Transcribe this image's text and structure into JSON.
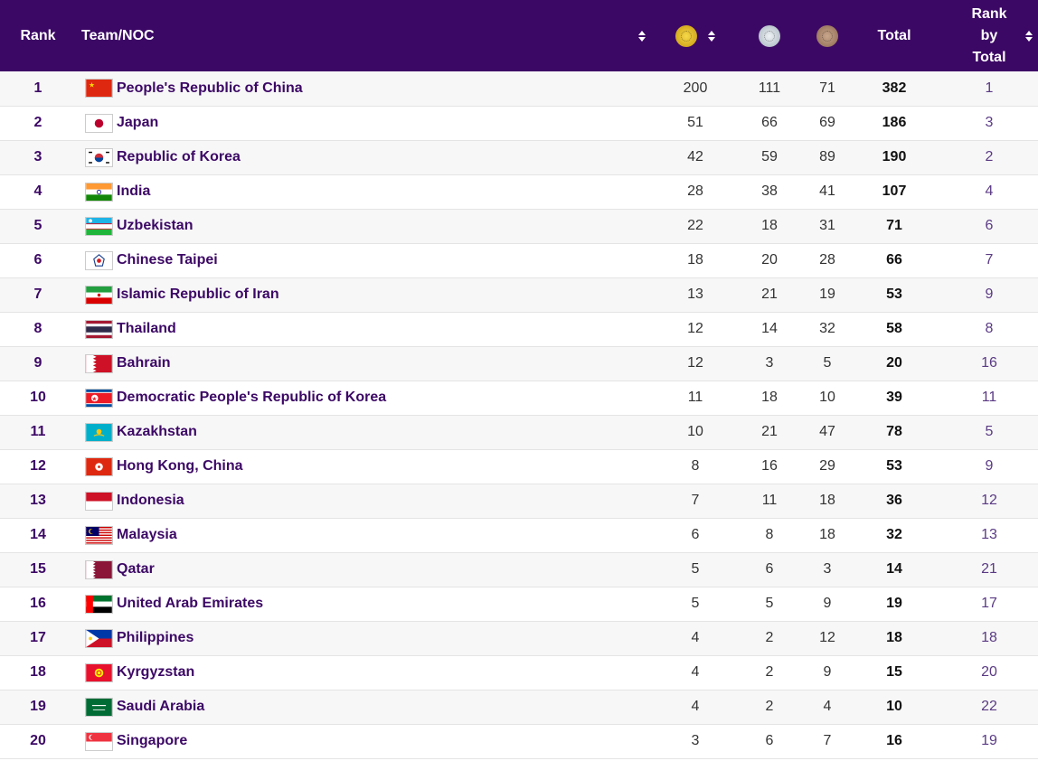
{
  "header": {
    "rank": "Rank",
    "team": "Team/NOC",
    "total": "Total",
    "rank_by_total": [
      "Rank",
      "by",
      "Total"
    ],
    "gold_icon": "gold-medal-icon",
    "silver_icon": "silver-medal-icon",
    "bronze_icon": "bronze-medal-icon"
  },
  "colors": {
    "header_bg": "#3c0865",
    "gold": "#d4aa1f",
    "silver": "#c4cdd4",
    "bronze": "#a8836a"
  },
  "rows": [
    {
      "rank": "1",
      "team": "People's Republic of China",
      "gold": "200",
      "silver": "111",
      "bronze": "71",
      "total": "382",
      "rank_by_total": "1",
      "flag": "china-flag-icon"
    },
    {
      "rank": "2",
      "team": "Japan",
      "gold": "51",
      "silver": "66",
      "bronze": "69",
      "total": "186",
      "rank_by_total": "3",
      "flag": "japan-flag-icon"
    },
    {
      "rank": "3",
      "team": "Republic of Korea",
      "gold": "42",
      "silver": "59",
      "bronze": "89",
      "total": "190",
      "rank_by_total": "2",
      "flag": "korea-flag-icon"
    },
    {
      "rank": "4",
      "team": "India",
      "gold": "28",
      "silver": "38",
      "bronze": "41",
      "total": "107",
      "rank_by_total": "4",
      "flag": "india-flag-icon"
    },
    {
      "rank": "5",
      "team": "Uzbekistan",
      "gold": "22",
      "silver": "18",
      "bronze": "31",
      "total": "71",
      "rank_by_total": "6",
      "flag": "uzbekistan-flag-icon"
    },
    {
      "rank": "6",
      "team": "Chinese Taipei",
      "gold": "18",
      "silver": "20",
      "bronze": "28",
      "total": "66",
      "rank_by_total": "7",
      "flag": "chinese-taipei-flag-icon"
    },
    {
      "rank": "7",
      "team": "Islamic Republic of Iran",
      "gold": "13",
      "silver": "21",
      "bronze": "19",
      "total": "53",
      "rank_by_total": "9",
      "flag": "iran-flag-icon"
    },
    {
      "rank": "8",
      "team": "Thailand",
      "gold": "12",
      "silver": "14",
      "bronze": "32",
      "total": "58",
      "rank_by_total": "8",
      "flag": "thailand-flag-icon"
    },
    {
      "rank": "9",
      "team": "Bahrain",
      "gold": "12",
      "silver": "3",
      "bronze": "5",
      "total": "20",
      "rank_by_total": "16",
      "flag": "bahrain-flag-icon"
    },
    {
      "rank": "10",
      "team": "Democratic People's Republic of Korea",
      "gold": "11",
      "silver": "18",
      "bronze": "10",
      "total": "39",
      "rank_by_total": "11",
      "flag": "dpr-korea-flag-icon"
    },
    {
      "rank": "11",
      "team": "Kazakhstan",
      "gold": "10",
      "silver": "21",
      "bronze": "47",
      "total": "78",
      "rank_by_total": "5",
      "flag": "kazakhstan-flag-icon"
    },
    {
      "rank": "12",
      "team": "Hong Kong, China",
      "gold": "8",
      "silver": "16",
      "bronze": "29",
      "total": "53",
      "rank_by_total": "9",
      "flag": "hong-kong-flag-icon"
    },
    {
      "rank": "13",
      "team": "Indonesia",
      "gold": "7",
      "silver": "11",
      "bronze": "18",
      "total": "36",
      "rank_by_total": "12",
      "flag": "indonesia-flag-icon"
    },
    {
      "rank": "14",
      "team": "Malaysia",
      "gold": "6",
      "silver": "8",
      "bronze": "18",
      "total": "32",
      "rank_by_total": "13",
      "flag": "malaysia-flag-icon"
    },
    {
      "rank": "15",
      "team": "Qatar",
      "gold": "5",
      "silver": "6",
      "bronze": "3",
      "total": "14",
      "rank_by_total": "21",
      "flag": "qatar-flag-icon"
    },
    {
      "rank": "16",
      "team": "United Arab Emirates",
      "gold": "5",
      "silver": "5",
      "bronze": "9",
      "total": "19",
      "rank_by_total": "17",
      "flag": "uae-flag-icon"
    },
    {
      "rank": "17",
      "team": "Philippines",
      "gold": "4",
      "silver": "2",
      "bronze": "12",
      "total": "18",
      "rank_by_total": "18",
      "flag": "philippines-flag-icon"
    },
    {
      "rank": "18",
      "team": "Kyrgyzstan",
      "gold": "4",
      "silver": "2",
      "bronze": "9",
      "total": "15",
      "rank_by_total": "20",
      "flag": "kyrgyzstan-flag-icon"
    },
    {
      "rank": "19",
      "team": "Saudi Arabia",
      "gold": "4",
      "silver": "2",
      "bronze": "4",
      "total": "10",
      "rank_by_total": "22",
      "flag": "saudi-arabia-flag-icon"
    },
    {
      "rank": "20",
      "team": "Singapore",
      "gold": "3",
      "silver": "6",
      "bronze": "7",
      "total": "16",
      "rank_by_total": "19",
      "flag": "singapore-flag-icon"
    }
  ]
}
